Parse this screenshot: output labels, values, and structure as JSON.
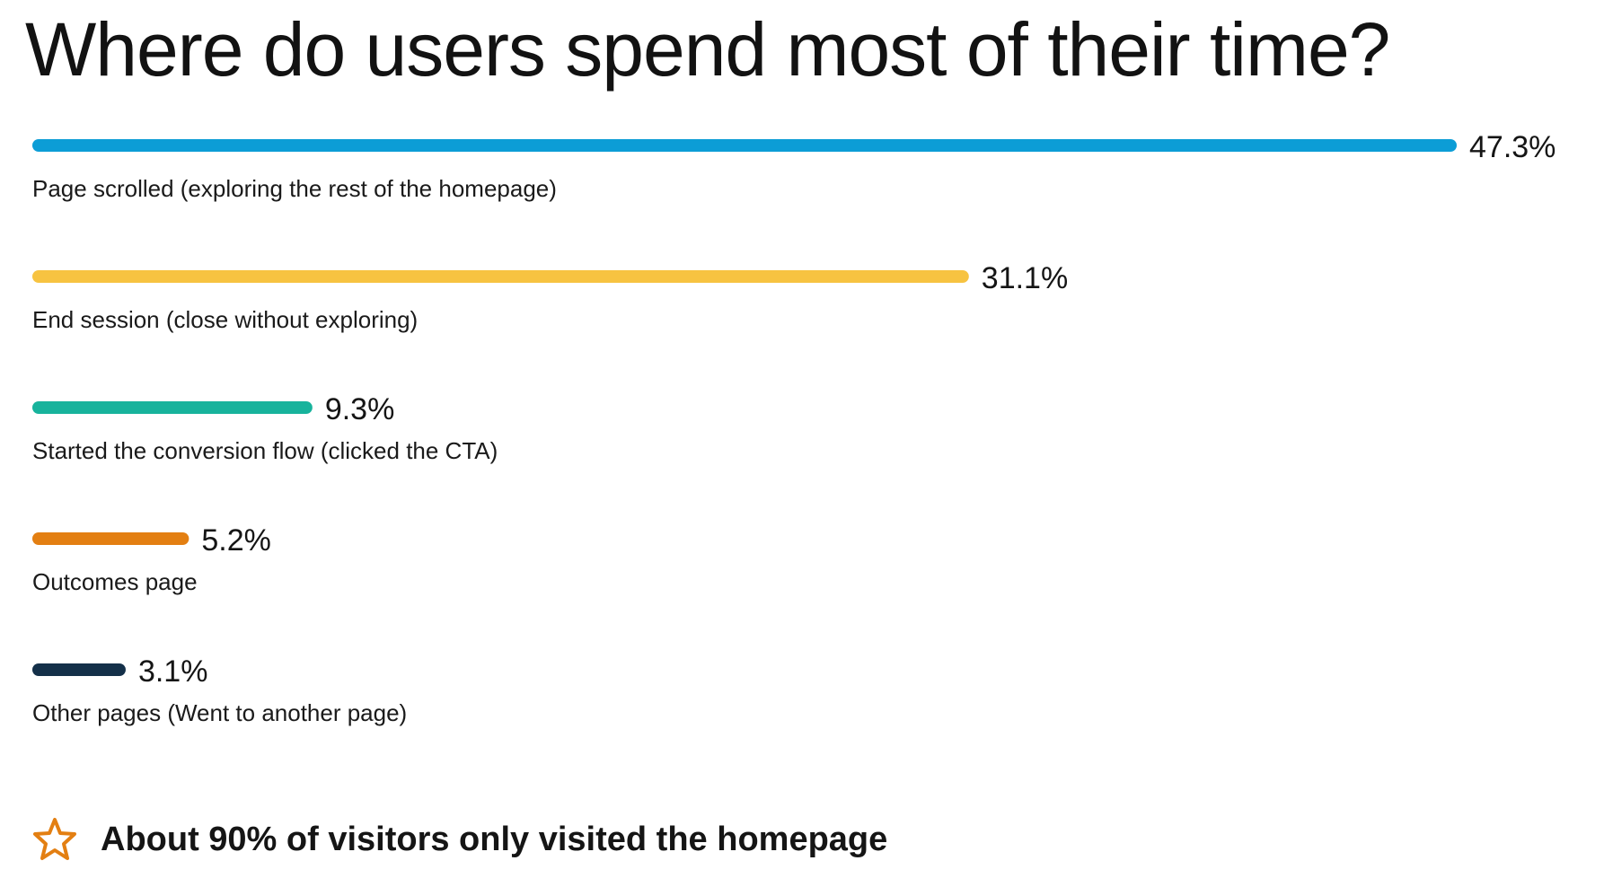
{
  "chart_title": "Where do users spend most of their time?",
  "chart_data": {
    "type": "bar",
    "orientation": "horizontal",
    "title": "Where do users spend most of their time?",
    "categories": [
      "Page scrolled (exploring the rest of the homepage)",
      "End session (close without exploring)",
      "Started the conversion flow (clicked the CTA)",
      "Outcomes page",
      "Other pages (Went to another page)"
    ],
    "values": [
      47.3,
      31.1,
      9.3,
      5.2,
      3.1
    ],
    "value_labels": [
      "47.3%",
      "31.1%",
      "9.3%",
      "5.2%",
      "3.1%"
    ],
    "colors": [
      "#0c9dd6",
      "#f7c341",
      "#17b39c",
      "#e37f12",
      "#143049"
    ],
    "unit": "%",
    "xlabel": "",
    "ylabel": "",
    "xlim": [
      0,
      47.3
    ],
    "grid": false,
    "legend": "none"
  },
  "takeaway": {
    "icon": "star-icon",
    "icon_color": "#e37f12",
    "text": "About 90% of visitors only visited the homepage"
  }
}
